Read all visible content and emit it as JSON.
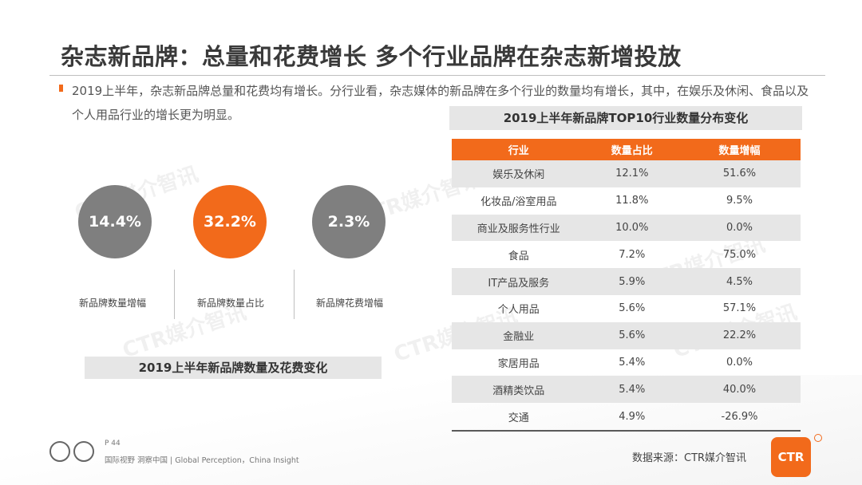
{
  "title": "杂志新品牌：总量和花费增长 多个行业品牌在杂志新增投放",
  "bullet": "2019上半年，杂志新品牌总量和花费均有增长。分行业看，杂志媒体的新品牌在多个行业的数量均有增长，其中，在娱乐及休闲、食品以及个人用品行业的增长更为明显。",
  "stats": [
    {
      "value": "14.4%",
      "label": "新品牌数量增幅",
      "color": "#7f7f7f"
    },
    {
      "value": "32.2%",
      "label": "新品牌数量占比",
      "color": "#f26a1b"
    },
    {
      "value": "2.3%",
      "label": "新品牌花费增幅",
      "color": "#7f7f7f"
    }
  ],
  "left_caption": "2019上半年新品牌数量及花费变化",
  "table_caption": "2019上半年新品牌TOP10行业数量分布变化",
  "table": {
    "headers": [
      "行业",
      "数量占比",
      "数量增幅"
    ],
    "rows": [
      [
        "娱乐及休闲",
        "12.1%",
        "51.6%"
      ],
      [
        "化妆品/浴室用品",
        "11.8%",
        "9.5%"
      ],
      [
        "商业及服务性行业",
        "10.0%",
        "0.0%"
      ],
      [
        "食品",
        "7.2%",
        "75.0%"
      ],
      [
        "IT产品及服务",
        "5.9%",
        "4.5%"
      ],
      [
        "个人用品",
        "5.6%",
        "57.1%"
      ],
      [
        "金融业",
        "5.6%",
        "22.2%"
      ],
      [
        "家居用品",
        "5.4%",
        "0.0%"
      ],
      [
        "酒精类饮品",
        "5.4%",
        "40.0%"
      ],
      [
        "交通",
        "4.9%",
        "-26.9%"
      ]
    ]
  },
  "watermark": "CTR媒介智讯",
  "footer": {
    "page": "P 44",
    "tagline": "国际视野 洞察中国 | Global Perception，China Insight",
    "source": "数据来源：CTR媒介智讯",
    "brand": "CTR"
  },
  "accent_color": "#f26a1b"
}
